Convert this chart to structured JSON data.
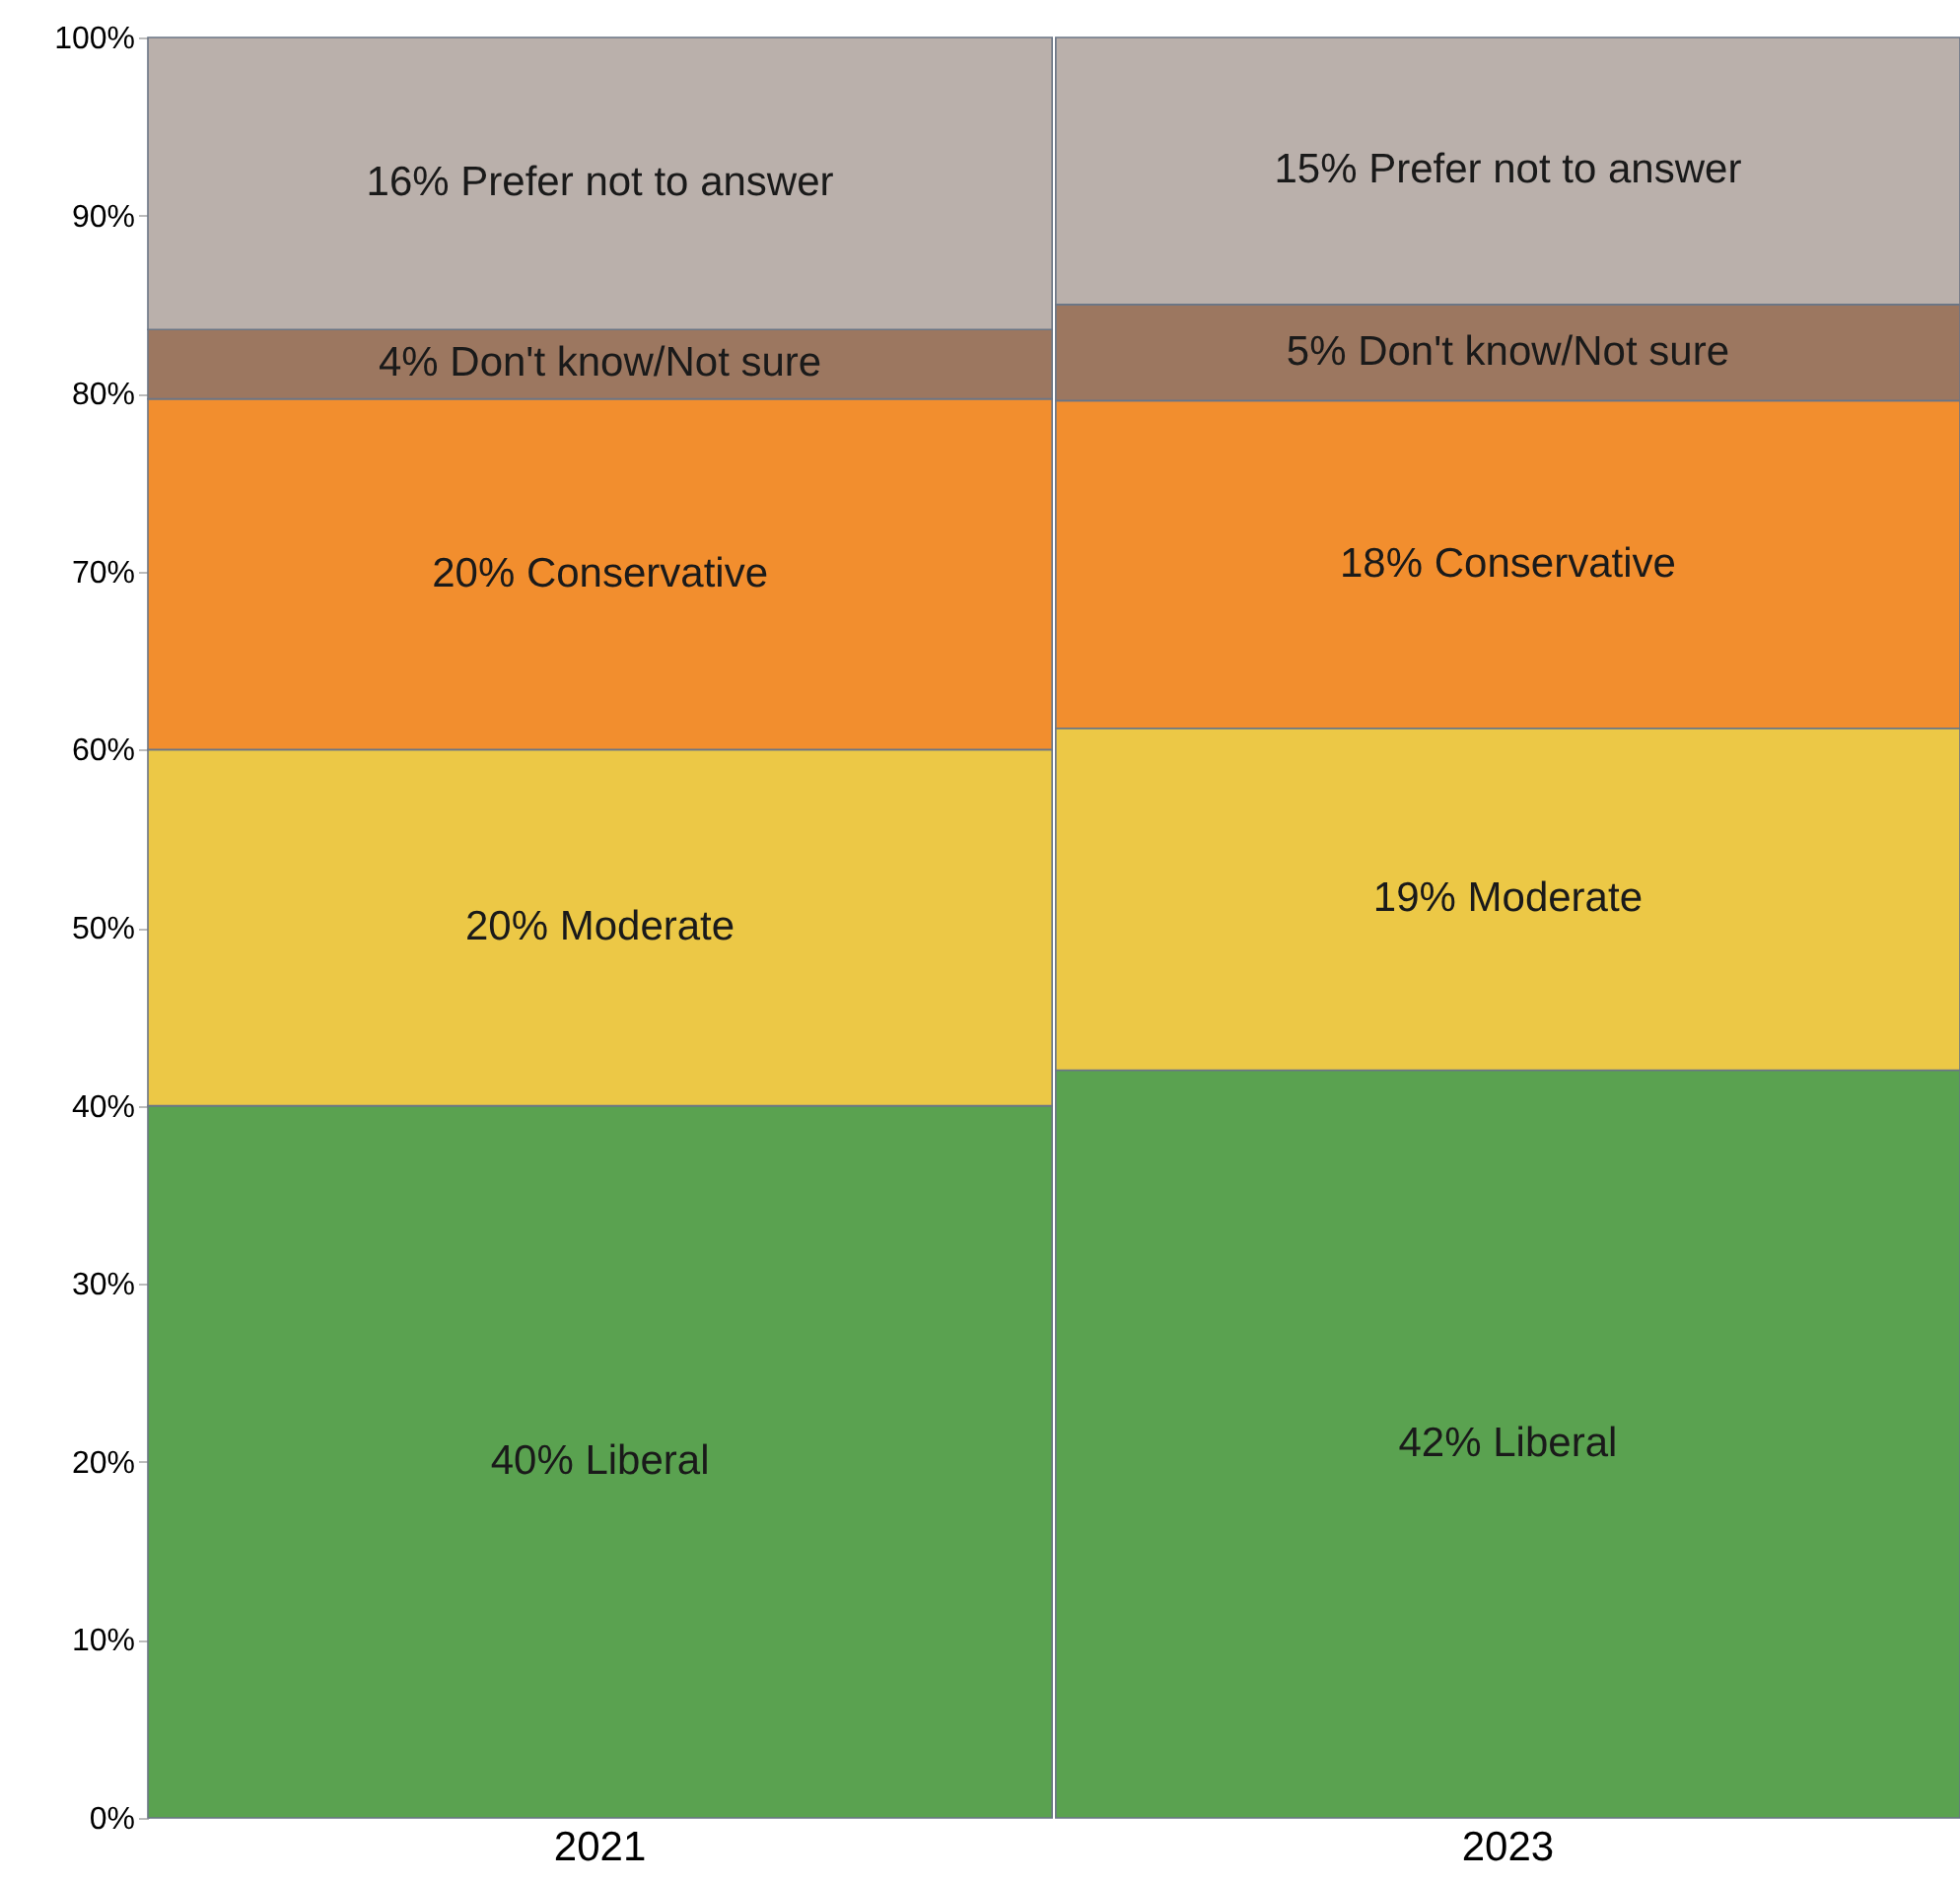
{
  "chart_data": {
    "type": "bar",
    "stacked": true,
    "categories": [
      "2021",
      "2023"
    ],
    "series": [
      {
        "name": "Liberal",
        "color": "#5aa250",
        "values": [
          40,
          42
        ],
        "value_labels": [
          "40%",
          "42%"
        ]
      },
      {
        "name": "Moderate",
        "color": "#ecc846",
        "values": [
          20,
          19.2
        ],
        "value_labels": [
          "20%",
          "19%"
        ]
      },
      {
        "name": "Conservative",
        "color": "#f28e2e",
        "values": [
          19.7,
          18.4
        ],
        "value_labels": [
          "20%",
          "18%"
        ]
      },
      {
        "name": "Don't know/Not sure",
        "color": "#9c7760",
        "values": [
          3.9,
          5.4
        ],
        "value_labels": [
          "4%",
          "5%"
        ]
      },
      {
        "name": "Prefer not to answer",
        "color": "#bab0ab",
        "values": [
          16.4,
          15
        ],
        "value_labels": [
          "16%",
          "15%"
        ]
      }
    ],
    "ylim": [
      0,
      100
    ],
    "yticks": [
      {
        "value": 0,
        "label": "0%"
      },
      {
        "value": 10,
        "label": "10%"
      },
      {
        "value": 20,
        "label": "20%"
      },
      {
        "value": 30,
        "label": "30%"
      },
      {
        "value": 40,
        "label": "40%"
      },
      {
        "value": 50,
        "label": "50%"
      },
      {
        "value": 60,
        "label": "60%"
      },
      {
        "value": 70,
        "label": "70%"
      },
      {
        "value": 80,
        "label": "80%"
      },
      {
        "value": 90,
        "label": "90%"
      },
      {
        "value": 100,
        "label": "100%"
      }
    ],
    "grid": false
  }
}
